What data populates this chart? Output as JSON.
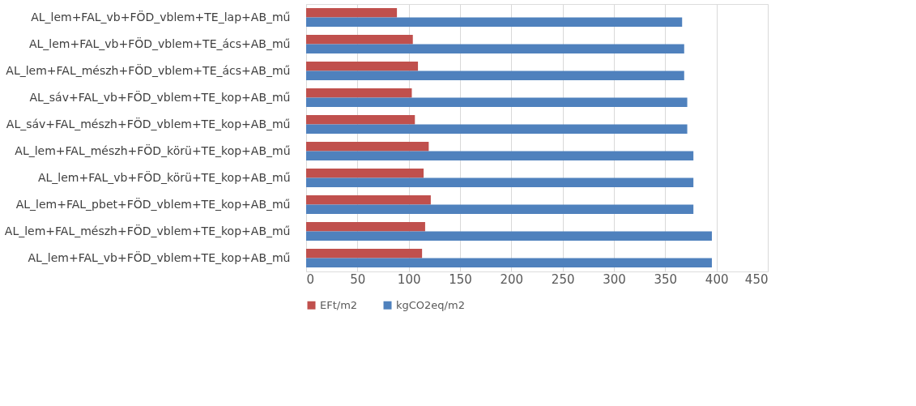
{
  "chart_data": {
    "type": "bar",
    "orientation": "horizontal",
    "categories": [
      "AL_lem+FAL_vb+FÖD_vblem+TE_lap+AB_mű",
      "AL_lem+FAL_vb+FÖD_vblem+TE_ács+AB_mű",
      "AL_lem+FAL_mészh+FÖD_vblem+TE_ács+AB_mű",
      "AL_sáv+FAL_vb+FÖD_vblem+TE_kop+AB_mű",
      "AL_sáv+FAL_mészh+FÖD_vblem+TE_kop+AB_mű",
      "AL_lem+FAL_mészh+FÖD_körü+TE_kop+AB_mű",
      "AL_lem+FAL_vb+FÖD_körü+TE_kop+AB_mű",
      "AL_lem+FAL_pbet+FÖD_vblem+TE_kop+AB_mű",
      "AL_lem+FAL_mészh+FÖD_vblem+TE_kop+AB_mű",
      "AL_lem+FAL_vb+FÖD_vblem+TE_kop+AB_mű"
    ],
    "series": [
      {
        "name": "EFt/m2",
        "color": "#c0504d",
        "values": [
          88.5,
          104,
          109,
          103,
          106,
          119.5,
          114.5,
          121.5,
          116,
          113
        ]
      },
      {
        "name": "kgCO2eq/m2",
        "color": "#4f81bd",
        "values": [
          366.5,
          368.5,
          368.5,
          371.5,
          371.5,
          377.5,
          377.5,
          377.5,
          395.5,
          395.5
        ]
      }
    ],
    "xlim": [
      0,
      450
    ],
    "xticks": [
      0,
      50,
      100,
      150,
      200,
      250,
      300,
      350,
      400,
      450
    ],
    "grid": "x",
    "legend": "bottom"
  }
}
